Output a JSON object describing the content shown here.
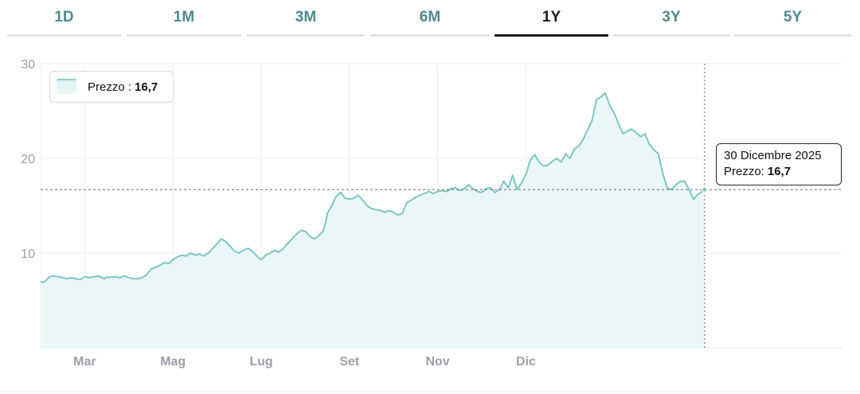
{
  "tabs": [
    {
      "label": "1D",
      "active": false
    },
    {
      "label": "1M",
      "active": false
    },
    {
      "label": "3M",
      "active": false
    },
    {
      "label": "6M",
      "active": false
    },
    {
      "label": "1Y",
      "active": true
    },
    {
      "label": "3Y",
      "active": false
    },
    {
      "label": "5Y",
      "active": false
    }
  ],
  "legend": {
    "label": "Prezzo :",
    "value": "16,7"
  },
  "tooltip": {
    "date": "30 Dicembre 2025",
    "label": "Prezzo:",
    "value": "16,7"
  },
  "colors": {
    "line": "#7cc6c4",
    "fill": "#eaf7f8",
    "accent": "#4f8a8a"
  },
  "chart_data": {
    "type": "area",
    "ylim": [
      0,
      30
    ],
    "yticks": [
      "10",
      "20",
      "30"
    ],
    "xticks": [
      {
        "label": "Mar",
        "month": 1
      },
      {
        "label": "Mag",
        "month": 3
      },
      {
        "label": "Lug",
        "month": 5
      },
      {
        "label": "Set",
        "month": 7
      },
      {
        "label": "Nov",
        "month": 9
      },
      {
        "label": "Dic",
        "month": 11
      }
    ],
    "current_value": 16.7,
    "series": [
      {
        "values": [
          [
            0.0,
            7.0
          ],
          [
            0.06,
            6.9
          ],
          [
            0.12,
            7.1
          ],
          [
            0.2,
            7.5
          ],
          [
            0.3,
            7.6
          ],
          [
            0.4,
            7.5
          ],
          [
            0.5,
            7.4
          ],
          [
            0.6,
            7.3
          ],
          [
            0.7,
            7.4
          ],
          [
            0.8,
            7.3
          ],
          [
            0.9,
            7.2
          ],
          [
            1.0,
            7.5
          ],
          [
            1.1,
            7.4
          ],
          [
            1.2,
            7.5
          ],
          [
            1.3,
            7.6
          ],
          [
            1.4,
            7.4
          ],
          [
            1.45,
            7.3
          ],
          [
            1.5,
            7.5
          ],
          [
            1.55,
            7.4
          ],
          [
            1.6,
            7.5
          ],
          [
            1.7,
            7.5
          ],
          [
            1.8,
            7.4
          ],
          [
            1.9,
            7.6
          ],
          [
            2.0,
            7.4
          ],
          [
            2.1,
            7.3
          ],
          [
            2.2,
            7.3
          ],
          [
            2.3,
            7.4
          ],
          [
            2.4,
            7.7
          ],
          [
            2.5,
            8.3
          ],
          [
            2.6,
            8.5
          ],
          [
            2.7,
            8.7
          ],
          [
            2.8,
            9.0
          ],
          [
            2.9,
            8.9
          ],
          [
            3.0,
            9.3
          ],
          [
            3.1,
            9.6
          ],
          [
            3.2,
            9.8
          ],
          [
            3.3,
            9.7
          ],
          [
            3.4,
            10.0
          ],
          [
            3.5,
            9.8
          ],
          [
            3.6,
            9.9
          ],
          [
            3.7,
            9.7
          ],
          [
            3.8,
            10.0
          ],
          [
            3.9,
            10.5
          ],
          [
            4.0,
            11.0
          ],
          [
            4.1,
            11.5
          ],
          [
            4.2,
            11.2
          ],
          [
            4.3,
            10.7
          ],
          [
            4.4,
            10.2
          ],
          [
            4.5,
            10.0
          ],
          [
            4.6,
            10.3
          ],
          [
            4.7,
            10.5
          ],
          [
            4.8,
            10.2
          ],
          [
            4.9,
            9.7
          ],
          [
            5.0,
            9.3
          ],
          [
            5.1,
            9.8
          ],
          [
            5.2,
            10.0
          ],
          [
            5.3,
            10.3
          ],
          [
            5.4,
            10.1
          ],
          [
            5.5,
            10.5
          ],
          [
            5.6,
            11.0
          ],
          [
            5.7,
            11.5
          ],
          [
            5.8,
            12.0
          ],
          [
            5.9,
            12.4
          ],
          [
            6.0,
            12.3
          ],
          [
            6.1,
            11.8
          ],
          [
            6.2,
            11.5
          ],
          [
            6.3,
            11.8
          ],
          [
            6.4,
            12.3
          ],
          [
            6.45,
            13.0
          ],
          [
            6.5,
            14.2
          ],
          [
            6.6,
            15.0
          ],
          [
            6.7,
            16.0
          ],
          [
            6.8,
            16.4
          ],
          [
            6.9,
            15.8
          ],
          [
            7.0,
            15.7
          ],
          [
            7.1,
            15.8
          ],
          [
            7.2,
            16.1
          ],
          [
            7.3,
            15.6
          ],
          [
            7.4,
            15.0
          ],
          [
            7.5,
            14.7
          ],
          [
            7.6,
            14.6
          ],
          [
            7.7,
            14.5
          ],
          [
            7.8,
            14.3
          ],
          [
            7.9,
            14.5
          ],
          [
            8.0,
            14.3
          ],
          [
            8.1,
            14.0
          ],
          [
            8.2,
            14.2
          ],
          [
            8.3,
            15.3
          ],
          [
            8.4,
            15.6
          ],
          [
            8.5,
            15.9
          ],
          [
            8.6,
            16.1
          ],
          [
            8.7,
            16.3
          ],
          [
            8.8,
            16.5
          ],
          [
            8.9,
            16.3
          ],
          [
            9.0,
            16.5
          ],
          [
            9.1,
            16.6
          ],
          [
            9.2,
            16.5
          ],
          [
            9.3,
            16.8
          ],
          [
            9.4,
            16.9
          ],
          [
            9.5,
            16.6
          ],
          [
            9.6,
            16.8
          ],
          [
            9.7,
            17.2
          ],
          [
            9.8,
            16.8
          ],
          [
            9.9,
            16.5
          ],
          [
            10.0,
            16.4
          ],
          [
            10.1,
            16.8
          ],
          [
            10.2,
            16.9
          ],
          [
            10.3,
            16.4
          ],
          [
            10.4,
            16.7
          ],
          [
            10.5,
            17.6
          ],
          [
            10.6,
            16.9
          ],
          [
            10.7,
            18.2
          ],
          [
            10.8,
            16.7
          ],
          [
            10.9,
            17.4
          ],
          [
            11.0,
            18.3
          ],
          [
            11.1,
            19.8
          ],
          [
            11.2,
            20.4
          ],
          [
            11.3,
            19.6
          ],
          [
            11.4,
            19.2
          ],
          [
            11.5,
            19.3
          ],
          [
            11.6,
            19.7
          ],
          [
            11.7,
            20.0
          ],
          [
            11.8,
            19.6
          ],
          [
            11.9,
            20.5
          ],
          [
            12.0,
            20.0
          ],
          [
            12.1,
            21.0
          ],
          [
            12.2,
            21.3
          ],
          [
            12.3,
            22.0
          ],
          [
            12.4,
            23.0
          ],
          [
            12.5,
            24.0
          ],
          [
            12.6,
            26.2
          ],
          [
            12.7,
            26.5
          ],
          [
            12.8,
            26.9
          ],
          [
            12.9,
            25.6
          ],
          [
            13.0,
            24.8
          ],
          [
            13.1,
            23.7
          ],
          [
            13.2,
            22.6
          ],
          [
            13.3,
            22.9
          ],
          [
            13.4,
            23.1
          ],
          [
            13.5,
            22.7
          ],
          [
            13.6,
            22.3
          ],
          [
            13.7,
            22.6
          ],
          [
            13.8,
            21.5
          ],
          [
            13.9,
            20.9
          ],
          [
            14.0,
            20.5
          ],
          [
            14.1,
            18.5
          ],
          [
            14.2,
            16.9
          ],
          [
            14.3,
            16.7
          ],
          [
            14.4,
            17.2
          ],
          [
            14.5,
            17.6
          ],
          [
            14.6,
            17.6
          ],
          [
            14.7,
            16.7
          ],
          [
            14.8,
            15.7
          ],
          [
            14.9,
            16.2
          ],
          [
            15.0,
            16.5
          ],
          [
            15.05,
            16.7
          ]
        ]
      }
    ]
  }
}
